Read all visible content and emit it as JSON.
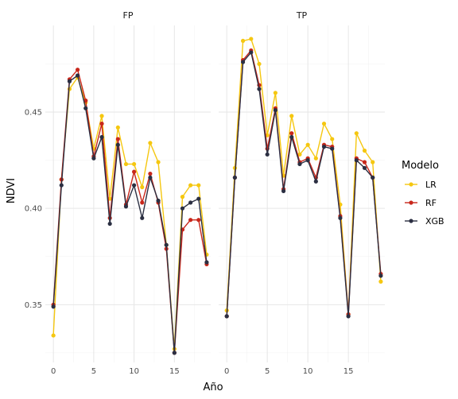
{
  "chart_data": {
    "type": "line",
    "xlabel": "Año",
    "ylabel": "NDVI",
    "xlim": [
      -1,
      19.5
    ],
    "ylim": [
      0.32,
      0.495
    ],
    "x_ticks": [
      0,
      5,
      10,
      15
    ],
    "y_ticks": [
      0.35,
      0.4,
      0.45
    ],
    "y_tick_labels": [
      "0.35",
      "0.40",
      "0.45"
    ],
    "grid": true,
    "legend_position": "right",
    "legend": {
      "title": "Modelo",
      "entries": [
        {
          "name": "LR",
          "color": "#F5C710"
        },
        {
          "name": "RF",
          "color": "#C8271B"
        },
        {
          "name": "XGB",
          "color": "#2B2F42"
        }
      ]
    },
    "x": [
      0,
      1,
      2,
      3,
      4,
      5,
      6,
      7,
      8,
      9,
      10,
      11,
      12,
      13,
      14,
      15,
      16,
      17,
      18,
      19
    ],
    "panels": [
      {
        "name": "FP",
        "series": [
          {
            "name": "LR",
            "color": "#F5C710",
            "values": [
              0.334,
              0.415,
              0.462,
              0.468,
              0.455,
              0.431,
              0.448,
              0.405,
              0.442,
              0.423,
              0.423,
              0.411,
              0.434,
              0.424,
              0.381,
              0.327,
              0.406,
              0.412,
              0.412,
              0.376
            ]
          },
          {
            "name": "RF",
            "color": "#C8271B",
            "values": [
              0.35,
              0.415,
              0.467,
              0.472,
              0.456,
              0.427,
              0.444,
              0.395,
              0.436,
              0.402,
              0.419,
              0.403,
              0.418,
              0.403,
              0.379,
              0.325,
              0.389,
              0.394,
              0.394,
              0.371
            ]
          },
          {
            "name": "XGB",
            "color": "#2B2F42",
            "values": [
              0.349,
              0.412,
              0.466,
              0.469,
              0.452,
              0.426,
              0.437,
              0.392,
              0.433,
              0.401,
              0.412,
              0.395,
              0.416,
              0.404,
              0.381,
              0.325,
              0.4,
              0.403,
              0.405,
              0.372
            ]
          }
        ]
      },
      {
        "name": "TP",
        "series": [
          {
            "name": "LR",
            "color": "#F5C710",
            "values": [
              0.347,
              0.421,
              0.487,
              0.488,
              0.475,
              0.438,
              0.46,
              0.417,
              0.448,
              0.428,
              0.433,
              0.426,
              0.444,
              0.436,
              0.402,
              0.345,
              0.439,
              0.43,
              0.424,
              0.362
            ]
          },
          {
            "name": "RF",
            "color": "#C8271B",
            "values": [
              0.344,
              0.416,
              0.477,
              0.482,
              0.464,
              0.431,
              0.452,
              0.41,
              0.439,
              0.424,
              0.426,
              0.416,
              0.433,
              0.432,
              0.396,
              0.345,
              0.426,
              0.424,
              0.416,
              0.366
            ]
          },
          {
            "name": "XGB",
            "color": "#2B2F42",
            "values": [
              0.344,
              0.416,
              0.476,
              0.481,
              0.462,
              0.428,
              0.451,
              0.409,
              0.437,
              0.423,
              0.425,
              0.414,
              0.432,
              0.431,
              0.395,
              0.344,
              0.425,
              0.421,
              0.416,
              0.365
            ]
          }
        ]
      }
    ]
  }
}
